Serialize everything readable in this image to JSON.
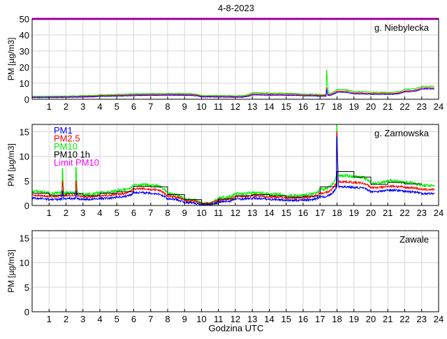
{
  "chart_data": {
    "type": "line",
    "title": "4-8-2023",
    "xlabel": "Godzina UTC",
    "x_ticks": [
      "1",
      "2",
      "3",
      "4",
      "5",
      "6",
      "7",
      "8",
      "9",
      "10",
      "11",
      "12",
      "13",
      "14",
      "15",
      "16",
      "17",
      "18",
      "19",
      "20",
      "21",
      "22",
      "23",
      "24"
    ],
    "xlim": [
      0,
      24
    ],
    "grid": true,
    "legend": {
      "placement": "top-left of second panel",
      "entries": [
        {
          "name": "PM1",
          "color": "#0000ff"
        },
        {
          "name": "PM2.5",
          "color": "#ff0000"
        },
        {
          "name": "PM10",
          "color": "#00ee00"
        },
        {
          "name": "PM10 1h",
          "color": "#000000"
        },
        {
          "name": "Limit PM10",
          "color": "#ff00ff"
        }
      ]
    },
    "panels": [
      {
        "station": "g. Niebylecka",
        "ylabel": "PM [µg/m3]",
        "ylim": [
          0,
          50
        ],
        "y_ticks": [
          "0",
          "10",
          "20",
          "30",
          "40",
          "50"
        ],
        "limit_pm10": 50,
        "hourly_levels": {
          "PM10": [
            1.7,
            1.8,
            1.9,
            2.2,
            2.7,
            3.0,
            3.3,
            3.4,
            3.5,
            3.4,
            2.3,
            2.2,
            2.1,
            4.0,
            3.8,
            3.6,
            3.1,
            2.9,
            6.0,
            4.7,
            4.3,
            4.2,
            6.2,
            8.0
          ],
          "PM2.5": [
            1.3,
            1.4,
            1.5,
            1.8,
            2.2,
            2.5,
            2.8,
            2.9,
            3.0,
            2.9,
            1.8,
            1.7,
            1.6,
            3.2,
            3.1,
            3.0,
            2.6,
            2.4,
            5.0,
            3.9,
            3.6,
            3.5,
            5.2,
            7.0
          ],
          "PM1": [
            1.0,
            1.1,
            1.2,
            1.4,
            1.8,
            2.0,
            2.3,
            2.4,
            2.5,
            2.4,
            1.4,
            1.3,
            1.2,
            2.6,
            2.5,
            2.4,
            2.1,
            1.9,
            4.3,
            3.3,
            3.0,
            3.0,
            4.6,
            6.4
          ]
        },
        "spikes": [
          {
            "hour": 17.4,
            "PM10": 18,
            "PM2.5": 7,
            "PM1": 6
          }
        ]
      },
      {
        "station": "g. Zarnowska",
        "ylabel": "PM [µg/m3]",
        "ylim": [
          0,
          16.5
        ],
        "y_ticks": [
          "0",
          "5",
          "10",
          "15"
        ],
        "hourly_levels": {
          "PM10": [
            2.8,
            2.4,
            2.6,
            2.2,
            2.6,
            3.0,
            4.2,
            4.0,
            2.3,
            1.2,
            0.4,
            1.5,
            2.3,
            2.5,
            2.2,
            1.9,
            2.1,
            3.2,
            6.0,
            5.8,
            4.5,
            4.9,
            4.6,
            4.0
          ],
          "PM2.5": [
            2.0,
            1.8,
            2.0,
            1.7,
            2.0,
            2.3,
            3.4,
            3.2,
            1.8,
            0.9,
            0.3,
            1.1,
            1.8,
            1.9,
            1.7,
            1.5,
            1.6,
            2.5,
            4.8,
            4.6,
            3.6,
            3.9,
            3.6,
            3.2
          ],
          "PM1": [
            1.4,
            1.2,
            1.4,
            1.2,
            1.4,
            1.7,
            2.6,
            2.4,
            1.3,
            0.5,
            0.1,
            0.7,
            1.3,
            1.4,
            1.2,
            1.0,
            1.1,
            1.7,
            3.8,
            3.6,
            2.8,
            3.1,
            2.8,
            2.4
          ]
        },
        "spikes": [
          {
            "hour": 18.0,
            "PM10": 16.5,
            "PM2.5": 15,
            "PM1": 14
          },
          {
            "hour": 1.8,
            "PM10": 7.5,
            "PM2.5": 5,
            "PM1": 3
          },
          {
            "hour": 2.6,
            "PM10": 7.8,
            "PM2.5": 5,
            "PM1": 3
          }
        ],
        "PM10_1h": [
          2.5,
          2.1,
          2.4,
          2.0,
          2.5,
          2.8,
          3.9,
          3.8,
          2.2,
          1.2,
          0.3,
          1.3,
          2.0,
          2.2,
          2.0,
          1.7,
          1.9,
          3.8,
          6.9,
          5.8,
          4.3,
          4.7,
          4.4
        ]
      },
      {
        "station": "Zawale",
        "ylabel": "PM [µg/m3]",
        "ylim": [
          0,
          16.5
        ],
        "y_ticks": [
          "0",
          "5",
          "10",
          "15"
        ],
        "hourly_levels": null
      }
    ]
  }
}
